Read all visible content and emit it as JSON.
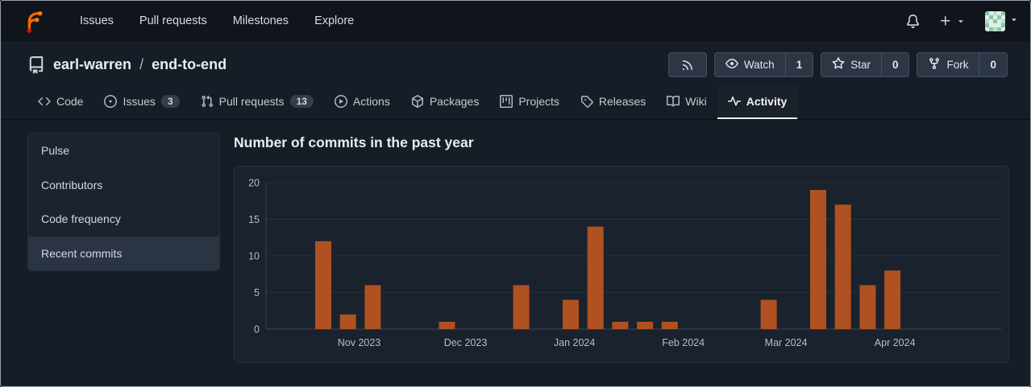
{
  "navbar": {
    "links": [
      {
        "id": "issues",
        "label": "Issues"
      },
      {
        "id": "pull-requests",
        "label": "Pull requests"
      },
      {
        "id": "milestones",
        "label": "Milestones"
      },
      {
        "id": "explore",
        "label": "Explore"
      }
    ]
  },
  "repo_header": {
    "owner": "earl-warren",
    "separator": "/",
    "name": "end-to-end",
    "actions": {
      "watch_label": "Watch",
      "watch_count": "1",
      "star_label": "Star",
      "star_count": "0",
      "fork_label": "Fork",
      "fork_count": "0"
    }
  },
  "tabs": [
    {
      "id": "code",
      "label": "Code",
      "icon": "code"
    },
    {
      "id": "issues",
      "label": "Issues",
      "icon": "issue",
      "badge": "3"
    },
    {
      "id": "pull-requests",
      "label": "Pull requests",
      "icon": "pull-request",
      "badge": "13"
    },
    {
      "id": "actions",
      "label": "Actions",
      "icon": "play"
    },
    {
      "id": "packages",
      "label": "Packages",
      "icon": "package"
    },
    {
      "id": "projects",
      "label": "Projects",
      "icon": "project"
    },
    {
      "id": "releases",
      "label": "Releases",
      "icon": "tag"
    },
    {
      "id": "wiki",
      "label": "Wiki",
      "icon": "book"
    },
    {
      "id": "activity",
      "label": "Activity",
      "icon": "pulse",
      "active": true
    }
  ],
  "sidebar": {
    "items": [
      {
        "id": "pulse",
        "label": "Pulse"
      },
      {
        "id": "contributors",
        "label": "Contributors"
      },
      {
        "id": "code-frequency",
        "label": "Code frequency"
      },
      {
        "id": "recent-commits",
        "label": "Recent commits",
        "active": true
      }
    ]
  },
  "main": {
    "title": "Number of commits in the past year"
  },
  "chart_data": {
    "type": "bar",
    "title": "Number of commits in the past year",
    "ylim": [
      0,
      20
    ],
    "y_ticks": [
      0,
      5,
      10,
      15,
      20
    ],
    "grid": true,
    "legend": false,
    "x_tick_labels": [
      "Nov 2023",
      "Dec 2023",
      "Jan 2024",
      "Feb 2024",
      "Mar 2024",
      "Apr 2024"
    ],
    "month_week_positions": [
      1.45,
      5.75,
      10.15,
      14.55,
      18.7,
      23.1
    ],
    "bars": [
      {
        "week_index": 0,
        "value": 12
      },
      {
        "week_index": 1,
        "value": 2
      },
      {
        "week_index": 2,
        "value": 6
      },
      {
        "week_index": 5,
        "value": 1
      },
      {
        "week_index": 8,
        "value": 6
      },
      {
        "week_index": 10,
        "value": 4
      },
      {
        "week_index": 11,
        "value": 14
      },
      {
        "week_index": 12,
        "value": 1
      },
      {
        "week_index": 13,
        "value": 1
      },
      {
        "week_index": 14,
        "value": 1
      },
      {
        "week_index": 18,
        "value": 4
      },
      {
        "week_index": 20,
        "value": 19
      },
      {
        "week_index": 21,
        "value": 17
      },
      {
        "week_index": 22,
        "value": 6
      },
      {
        "week_index": 23,
        "value": 8
      }
    ],
    "bar_color": "#af5120"
  },
  "colors": {
    "accent_logo_orange": "#ff7700",
    "accent_logo_red": "#dd0f00",
    "grid_line": "#27303c",
    "axis_line": "#3c4855"
  }
}
